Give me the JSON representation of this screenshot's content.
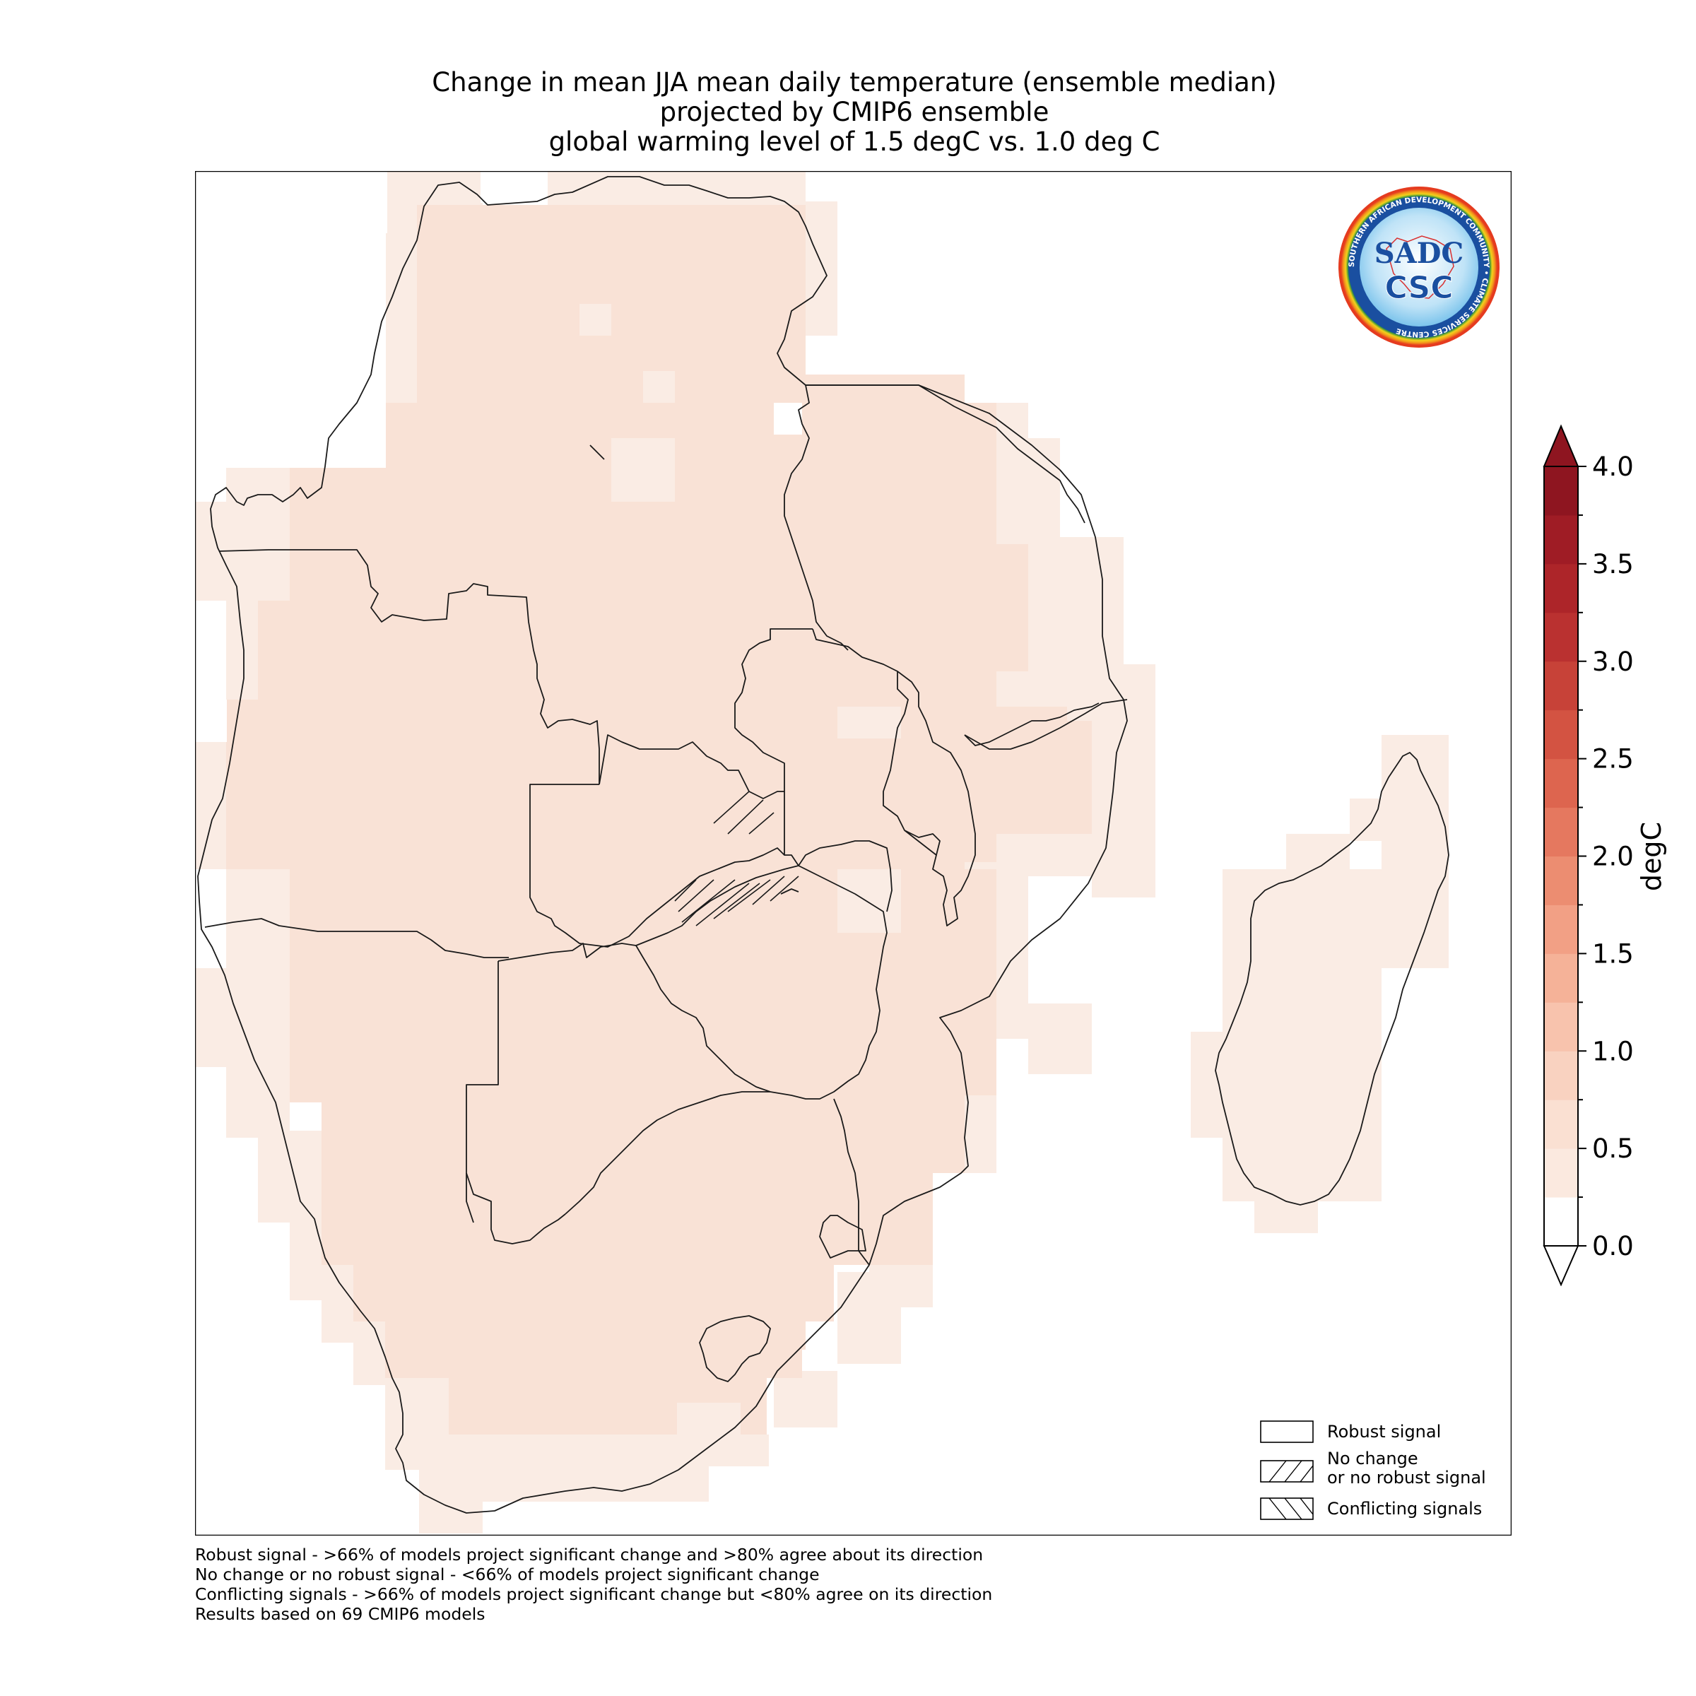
{
  "title": {
    "line1": "Change in mean JJA mean daily temperature (ensemble median)",
    "line2": "projected by CMIP6 ensemble",
    "line3": "global warming level of 1.5 degC vs. 1.0 deg C"
  },
  "colorbar": {
    "label": "degC",
    "min": 0.0,
    "max": 4.0,
    "step": 0.25,
    "ticks": [
      "0.0",
      "0.5",
      "1.0",
      "1.5",
      "2.0",
      "2.5",
      "3.0",
      "3.5",
      "4.0"
    ],
    "colors": [
      "#ffffff",
      "#fbe9df",
      "#fae0d2",
      "#f9d2c0",
      "#f8c3ad",
      "#f5b298",
      "#f2a085",
      "#ec8d71",
      "#e5785f",
      "#dd654f",
      "#d35342",
      "#c74238",
      "#ba3130",
      "#ad2529",
      "#9f1c25",
      "#8e1520"
    ],
    "extend": "both"
  },
  "legend": {
    "robust": "Robust signal",
    "no_change_line1": "No change",
    "no_change_line2": "or no robust signal",
    "conflicting": "Conflicting signals"
  },
  "footnotes": {
    "line1": "Robust signal - >66% of models project significant change and >80% agree about its direction",
    "line2": "No change or no robust signal - <66% of models project significant change",
    "line3": "Conflicting signals - >66% of models project significant change but <80% agree on its direction",
    "line4": "Results based on 69 CMIP6 models"
  },
  "logo": {
    "main": "CSC",
    "ring_text": "SOUTHERN AFRICAN DEVELOPMENT COMMUNITY • CLIMATE SERVICES CENTRE"
  },
  "map": {
    "colors": {
      "light": "#faece4",
      "medium": "#f9e2d6",
      "border": "#1a1a1a"
    }
  }
}
